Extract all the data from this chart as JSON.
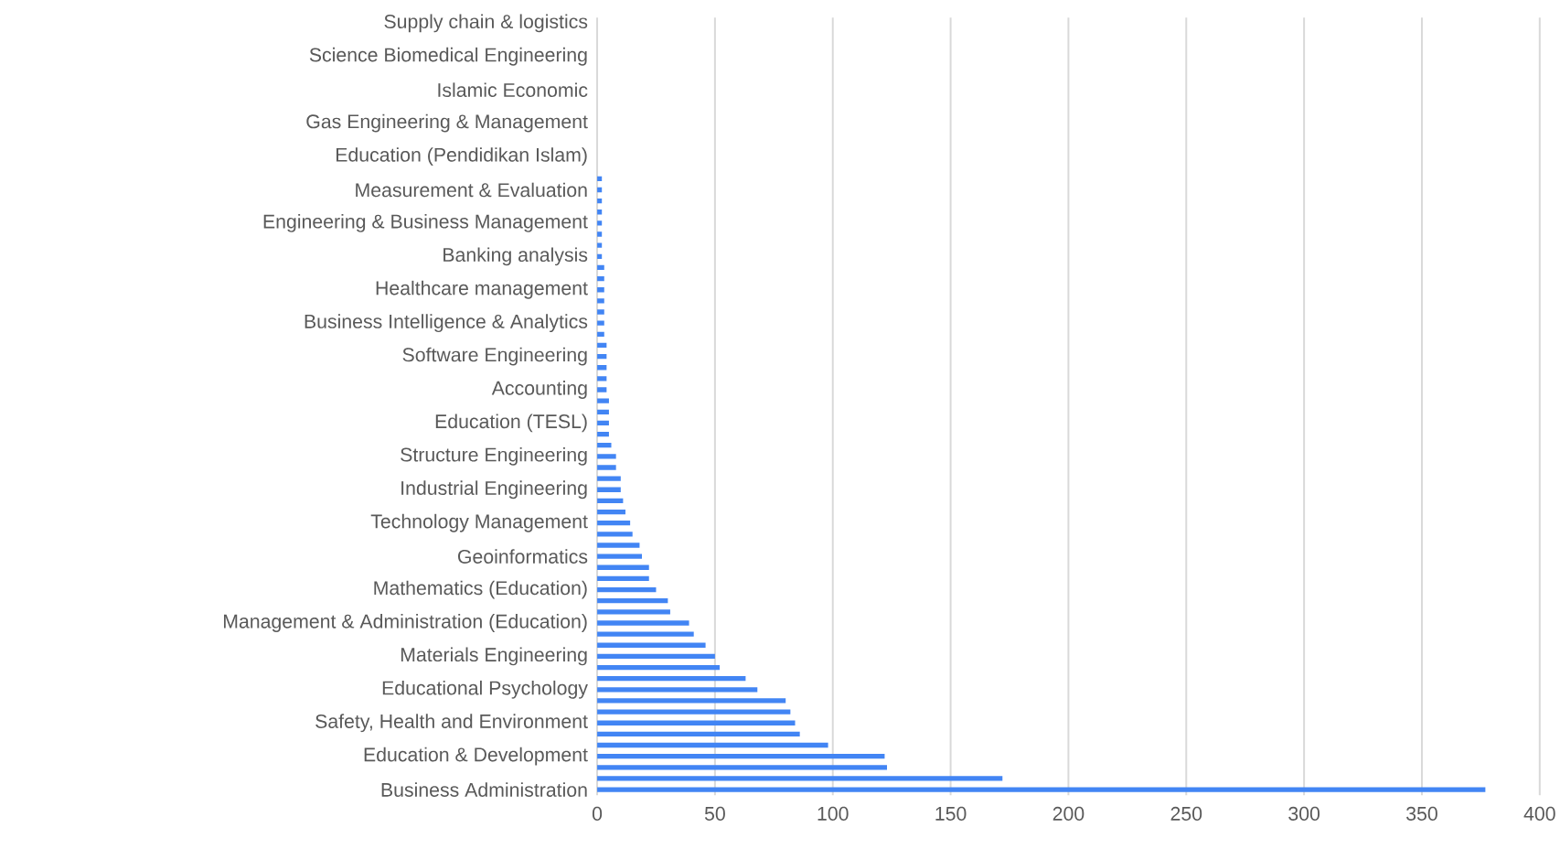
{
  "chart_data": {
    "type": "bar",
    "orientation": "horizontal",
    "color": "#4285f4",
    "grid": "x",
    "xlim": [
      0,
      400
    ],
    "xticks": [
      0,
      50,
      100,
      150,
      200,
      250,
      300,
      350,
      400
    ],
    "categories": [
      "Supply chain & logistics",
      null,
      null,
      "Science Biomedical Engineering",
      null,
      null,
      "Islamic Economic",
      null,
      null,
      "Gas Engineering & Management",
      null,
      null,
      "Education (Pendidikan Islam)",
      null,
      null,
      "Measurement & Evaluation",
      null,
      null,
      "Engineering & Business Management",
      null,
      null,
      "Banking analysis",
      null,
      null,
      "Healthcare management",
      null,
      null,
      "Business Intelligence & Analytics",
      null,
      null,
      "Software Engineering",
      null,
      null,
      "Accounting",
      null,
      null,
      "Education (TESL)",
      null,
      null,
      "Structure Engineering",
      null,
      null,
      "Industrial Engineering",
      null,
      null,
      "Technology Management",
      null,
      null,
      "Geoinformatics",
      null,
      null,
      "Mathematics (Education)",
      null,
      null,
      "Management & Administration (Education)",
      null,
      null,
      "Materials Engineering",
      null,
      null,
      "Educational Psychology",
      null,
      null,
      "Safety, Health and Environment",
      null,
      null,
      "Education & Development",
      null,
      null,
      "Business Administration"
    ],
    "values": [
      0,
      0,
      0,
      0,
      0,
      0,
      0,
      0,
      0,
      0,
      0,
      0,
      0,
      0,
      2,
      2,
      2,
      2,
      2,
      2,
      2,
      2,
      3,
      3,
      3,
      3,
      3,
      3,
      3,
      4,
      4,
      4,
      4,
      4,
      5,
      5,
      5,
      5,
      6,
      8,
      8,
      10,
      10,
      11,
      12,
      14,
      15,
      18,
      19,
      22,
      22,
      25,
      30,
      31,
      39,
      41,
      46,
      50,
      52,
      63,
      68,
      80,
      82,
      84,
      86,
      98,
      122,
      123,
      172,
      377
    ]
  }
}
